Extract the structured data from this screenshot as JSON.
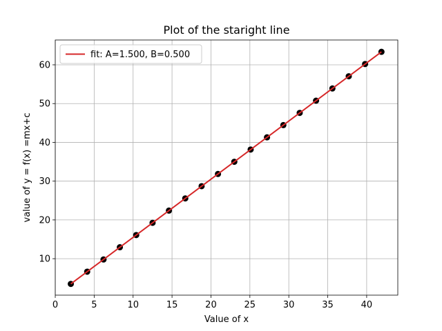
{
  "chart_data": {
    "type": "scatter",
    "title": "Plot of the staright line",
    "xlabel": "Value of x",
    "ylabel": "value of y = f(x) =mx+c",
    "xlim": [
      0,
      44
    ],
    "ylim": [
      0.6,
      66.4
    ],
    "xticks": [
      0,
      5,
      10,
      15,
      20,
      25,
      30,
      35,
      40
    ],
    "yticks": [
      10,
      20,
      30,
      40,
      50,
      60
    ],
    "grid": true,
    "legend_position": "top-left",
    "series": [
      {
        "kind": "scatter",
        "color": "#000000",
        "x": [
          2.0,
          4.1,
          6.2,
          8.3,
          10.4,
          12.5,
          14.6,
          16.7,
          18.8,
          20.9,
          23.0,
          25.1,
          27.2,
          29.3,
          31.4,
          33.5,
          35.6,
          37.7,
          39.8,
          41.9
        ],
        "y": [
          3.5,
          6.65,
          9.8,
          12.95,
          16.1,
          19.25,
          22.4,
          25.55,
          28.7,
          31.85,
          35.0,
          38.15,
          41.3,
          44.45,
          47.6,
          50.75,
          53.9,
          57.05,
          60.2,
          63.35
        ]
      },
      {
        "kind": "line",
        "name": "fit: A=1.500, B=0.500",
        "color": "#d62728",
        "x": [
          2.0,
          41.9
        ],
        "y": [
          3.5,
          63.35
        ]
      }
    ]
  }
}
